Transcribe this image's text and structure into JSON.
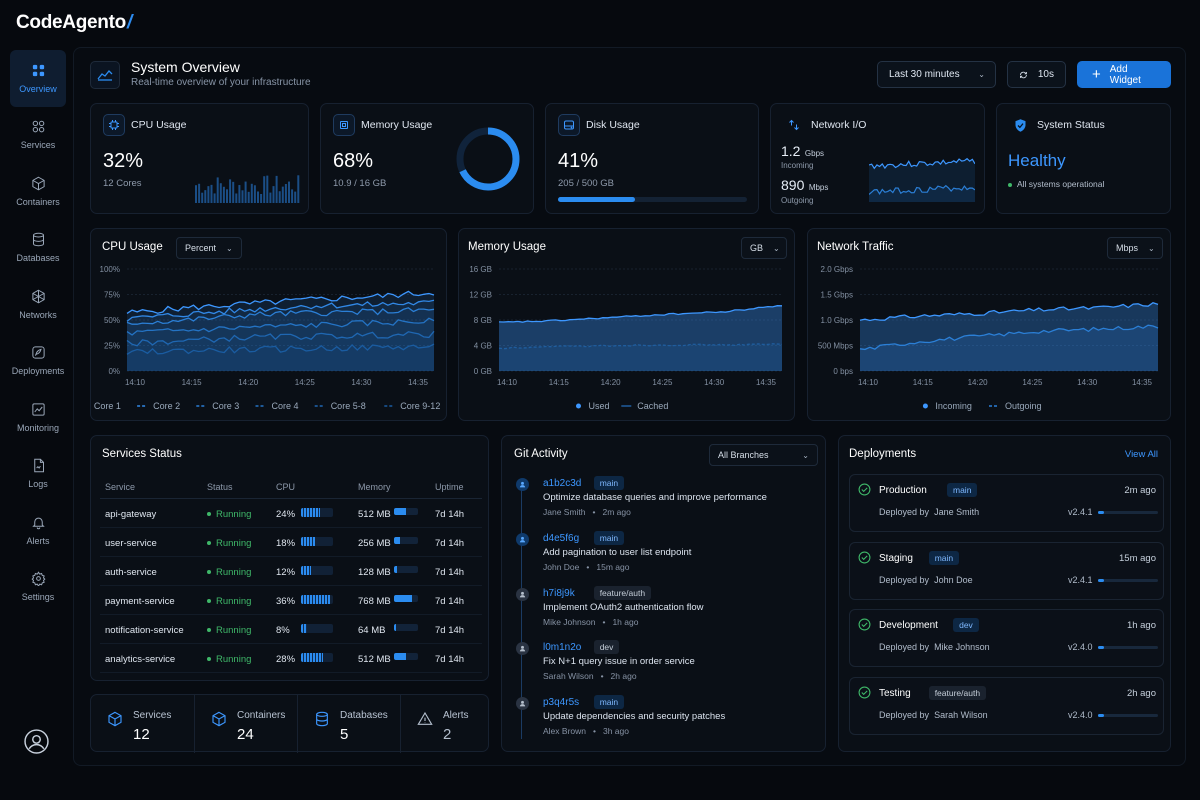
{
  "brand": {
    "name": "CodeAgento",
    "slash": "/"
  },
  "sidebar": {
    "items": [
      {
        "label": "Overview",
        "icon": "grid-icon",
        "active": true
      },
      {
        "label": "Services",
        "icon": "services-icon"
      },
      {
        "label": "Containers",
        "icon": "cube-icon"
      },
      {
        "label": "Databases",
        "icon": "database-icon"
      },
      {
        "label": "Networks",
        "icon": "network-icon"
      },
      {
        "label": "Deployments",
        "icon": "rocket-icon"
      },
      {
        "label": "Monitoring",
        "icon": "chart-icon"
      },
      {
        "label": "Logs",
        "icon": "file-icon"
      },
      {
        "label": "Alerts",
        "icon": "bell-icon"
      },
      {
        "label": "Settings",
        "icon": "gear-icon"
      }
    ]
  },
  "header": {
    "title": "System Overview",
    "subtitle": "Real-time overview of your infrastructure",
    "time_range": "Last 30 minutes",
    "refresh": "10s",
    "add_widget": "Add Widget"
  },
  "kpis": {
    "cpu": {
      "title": "CPU Usage",
      "value": "32%",
      "sub": "12 Cores"
    },
    "memory": {
      "title": "Memory Usage",
      "value": "68%",
      "sub": "10.9 / 16 GB",
      "ring_fraction": 0.68
    },
    "disk": {
      "title": "Disk Usage",
      "value": "41%",
      "sub": "205 / 500 GB",
      "fill_fraction": 0.41
    },
    "network": {
      "title": "Network I/O",
      "in_value": "1.2",
      "in_unit": "Gbps",
      "in_label": "Incoming",
      "out_value": "890",
      "out_unit": "Mbps",
      "out_label": "Outgoing"
    },
    "status": {
      "title": "System Status",
      "value": "Healthy",
      "sub": "All systems operational"
    }
  },
  "charts": {
    "cpu": {
      "title": "CPU Usage",
      "unit": "Percent"
    },
    "memory": {
      "title": "Memory Usage",
      "unit": "GB"
    },
    "network": {
      "title": "Network Traffic",
      "unit": "Mbps"
    }
  },
  "chart_data": [
    {
      "type": "line",
      "title": "CPU Usage",
      "x": [
        "14:10",
        "14:15",
        "14:20",
        "14:25",
        "14:30",
        "14:35"
      ],
      "ylim": [
        0,
        100
      ],
      "yticks": [
        "0%",
        "25%",
        "50%",
        "75%",
        "100%"
      ],
      "series": [
        {
          "name": "Core 1",
          "values": [
            57,
            62,
            66,
            70,
            73,
            77
          ]
        },
        {
          "name": "Core 2",
          "values": [
            51,
            56,
            60,
            64,
            65,
            67
          ]
        },
        {
          "name": "Core 3",
          "values": [
            47,
            50,
            55,
            57,
            58,
            60
          ]
        },
        {
          "name": "Core 4",
          "values": [
            37,
            40,
            43,
            45,
            47,
            49
          ]
        },
        {
          "name": "Core 5-8",
          "values": [
            27,
            30,
            33,
            34,
            35,
            36
          ]
        },
        {
          "name": "Core 9-12",
          "values": [
            18,
            20,
            21,
            22,
            23,
            24
          ]
        }
      ]
    },
    {
      "type": "area",
      "title": "Memory Usage",
      "x": [
        "14:10",
        "14:15",
        "14:20",
        "14:25",
        "14:30",
        "14:35"
      ],
      "ylim": [
        0,
        16
      ],
      "yticks": [
        "0 GB",
        "4 GB",
        "8 GB",
        "12 GB",
        "16 GB"
      ],
      "series": [
        {
          "name": "Used",
          "values": [
            7.6,
            7.9,
            8.4,
            8.9,
            9.3,
            10.3
          ]
        },
        {
          "name": "Cached",
          "values": [
            3.6,
            3.8,
            4.0,
            4.1,
            4.1,
            4.2
          ]
        }
      ]
    },
    {
      "type": "area",
      "title": "Network Traffic",
      "x": [
        "14:10",
        "14:15",
        "14:20",
        "14:25",
        "14:30",
        "14:35"
      ],
      "ylim": [
        0,
        2000
      ],
      "yticks": [
        "0 bps",
        "500 Mbps",
        "1.0 Gbps",
        "1.5 Gbps",
        "2.0 Gbps"
      ],
      "series": [
        {
          "name": "Incoming",
          "values": [
            1000,
            1080,
            1130,
            1200,
            1240,
            1320
          ]
        },
        {
          "name": "Outgoing",
          "values": [
            420,
            580,
            680,
            780,
            820,
            880
          ]
        }
      ]
    }
  ],
  "services": {
    "title": "Services Status",
    "columns": [
      "Service",
      "Status",
      "CPU",
      "Memory",
      "Uptime"
    ],
    "rows": [
      {
        "name": "api-gateway",
        "status": "Running",
        "cpu": "24%",
        "cpu_frac": 0.24,
        "memory": "512 MB",
        "mem_frac": 0.5,
        "uptime": "7d 14h"
      },
      {
        "name": "user-service",
        "status": "Running",
        "cpu": "18%",
        "cpu_frac": 0.18,
        "memory": "256 MB",
        "mem_frac": 0.25,
        "uptime": "7d 14h"
      },
      {
        "name": "auth-service",
        "status": "Running",
        "cpu": "12%",
        "cpu_frac": 0.12,
        "memory": "128 MB",
        "mem_frac": 0.125,
        "uptime": "7d 14h"
      },
      {
        "name": "payment-service",
        "status": "Running",
        "cpu": "36%",
        "cpu_frac": 0.36,
        "memory": "768 MB",
        "mem_frac": 0.75,
        "uptime": "7d 14h"
      },
      {
        "name": "notification-service",
        "status": "Running",
        "cpu": "8%",
        "cpu_frac": 0.08,
        "memory": "64 MB",
        "mem_frac": 0.0625,
        "uptime": "7d 14h"
      },
      {
        "name": "analytics-service",
        "status": "Running",
        "cpu": "28%",
        "cpu_frac": 0.28,
        "memory": "512 MB",
        "mem_frac": 0.5,
        "uptime": "7d 14h"
      }
    ]
  },
  "summary": [
    {
      "label": "Services",
      "value": "12",
      "icon": "cube-icon"
    },
    {
      "label": "Containers",
      "value": "24",
      "icon": "cube-icon"
    },
    {
      "label": "Databases",
      "value": "5",
      "icon": "database-icon"
    },
    {
      "label": "Alerts",
      "value": "2",
      "icon": "warning-icon"
    }
  ],
  "git": {
    "title": "Git Activity",
    "branch_filter": "All Branches",
    "commits": [
      {
        "hash": "a1b2c3d",
        "branch": "main",
        "message": "Optimize database queries and improve performance",
        "author": "Jane Smith",
        "time": "2m ago"
      },
      {
        "hash": "d4e5f6g",
        "branch": "main",
        "message": "Add pagination to user list endpoint",
        "author": "John Doe",
        "time": "15m ago"
      },
      {
        "hash": "h7i8j9k",
        "branch": "feature/auth",
        "message": "Implement OAuth2 authentication flow",
        "author": "Mike Johnson",
        "time": "1h ago"
      },
      {
        "hash": "l0m1n2o",
        "branch": "dev",
        "message": "Fix N+1 query issue in order service",
        "author": "Sarah Wilson",
        "time": "2h ago"
      },
      {
        "hash": "p3q4r5s",
        "branch": "main",
        "message": "Update dependencies and security patches",
        "author": "Alex Brown",
        "time": "3h ago"
      }
    ]
  },
  "deployments": {
    "title": "Deployments",
    "view_all": "View All",
    "items": [
      {
        "env": "Production",
        "branch": "main",
        "time": "2m ago",
        "by_label": "Deployed by",
        "by": "Jane Smith",
        "version": "v2.4.1"
      },
      {
        "env": "Staging",
        "branch": "main",
        "time": "15m ago",
        "by_label": "Deployed by",
        "by": "John Doe",
        "version": "v2.4.1"
      },
      {
        "env": "Development",
        "branch": "dev",
        "time": "1h ago",
        "by_label": "Deployed by",
        "by": "Mike Johnson",
        "version": "v2.4.0"
      },
      {
        "env": "Testing",
        "branch": "feature/auth",
        "time": "2h ago",
        "by_label": "Deployed by",
        "by": "Sarah Wilson",
        "version": "v2.4.0"
      }
    ]
  },
  "colors": {
    "accent": "#2b8cf0",
    "success": "#3fb869",
    "bg": "#06090e"
  }
}
